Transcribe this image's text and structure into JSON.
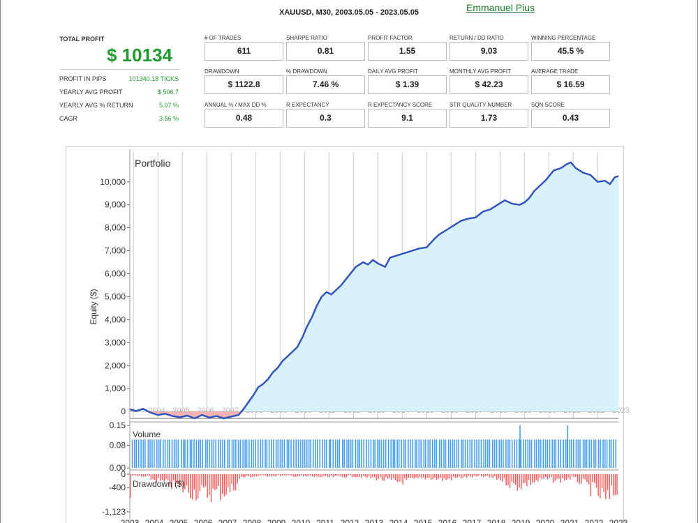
{
  "report": {
    "title": "XAUUSD, M30, 2003.05.05 - 2023.05.05",
    "author": "Emmanuel  Pius"
  },
  "summary": {
    "total_profit_label": "TOTAL PROFIT",
    "total_profit_value": "$ 10134",
    "rows": [
      {
        "label": "PROFIT IN PIPS",
        "value": "101340.18 TICKS"
      },
      {
        "label": "YEARLY AVG PROFIT",
        "value": "$ 506.7"
      },
      {
        "label": "YEARLY AVG % RETURN",
        "value": "5.07 %"
      },
      {
        "label": "CAGR",
        "value": "3.56 %"
      }
    ]
  },
  "metrics": [
    {
      "label": "# OF TRADES",
      "value": "611"
    },
    {
      "label": "SHARPE RATIO",
      "value": "0.81"
    },
    {
      "label": "PROFIT FACTOR",
      "value": "1.55"
    },
    {
      "label": "RETURN / DD RATIO",
      "value": "9.03"
    },
    {
      "label": "WINNING PERCENTAGE",
      "value": "45.5 %"
    },
    {
      "label": "DRAWDOWN",
      "value": "$ 1122.8"
    },
    {
      "label": "% DRAWDOWN",
      "value": "7.46 %"
    },
    {
      "label": "DAILY AVG PROFIT",
      "value": "$ 1.39"
    },
    {
      "label": "MONTHLY AVG PROFIT",
      "value": "$ 42.23"
    },
    {
      "label": "AVERAGE TRADE",
      "value": "$ 16.59"
    },
    {
      "label": "ANNUAL % / MAX DD %",
      "value": "0.48"
    },
    {
      "label": "R EXPECTANCY",
      "value": "0.3"
    },
    {
      "label": "R EXPECTANCY SCORE",
      "value": "9.1"
    },
    {
      "label": "STR QUALITY NUMBER",
      "value": "1.73"
    },
    {
      "label": "SQN SCORE",
      "value": "0.43"
    }
  ],
  "chart_data": {
    "type": "line",
    "title": "Portfolio",
    "ylabel": "Equity ($)",
    "ylim": [
      -300,
      11300
    ],
    "yticks": [
      "10,000",
      "9,000",
      "8,000",
      "7,000",
      "6,000",
      "5,000",
      "4,000",
      "3,000",
      "2,000",
      "1,000"
    ],
    "ytick_values": [
      10000,
      9000,
      8000,
      7000,
      6000,
      5000,
      4000,
      3000,
      2000,
      1000
    ],
    "zero_label": "0",
    "year_labels": [
      "2003",
      "2004",
      "2005",
      "2006",
      "2007",
      "2008",
      "2009",
      "2010",
      "2011",
      "2012",
      "2013",
      "2014",
      "2015",
      "2016",
      "2017",
      "2018",
      "2019",
      "2020",
      "2021",
      "2022",
      "2023"
    ],
    "x_range": [
      2003.35,
      2023.35
    ],
    "colors": {
      "line": "#3355bb",
      "fill": "#d8f2fc",
      "negative_fill": "#f4b4b4",
      "volume": "#4a9ef0",
      "drawdown": "#f06060",
      "grid": "#cccccc"
    },
    "series": [
      {
        "x": [
          2003.35,
          2003.6,
          2003.9,
          2004.2,
          2004.5,
          2004.8,
          2005.1,
          2005.4,
          2005.7,
          2006.0,
          2006.3,
          2006.6,
          2006.9,
          2007.2,
          2007.5,
          2007.8,
          2008.0,
          2008.2,
          2008.4,
          2008.6,
          2008.8,
          2009.0,
          2009.2,
          2009.4,
          2009.6,
          2009.8,
          2010.0,
          2010.2,
          2010.4,
          2010.6,
          2010.8,
          2011.0,
          2011.2,
          2011.4,
          2011.6,
          2011.8,
          2012.0,
          2012.3,
          2012.6,
          2012.9,
          2013.1,
          2013.3,
          2013.5,
          2013.8,
          2014.0,
          2014.3,
          2014.6,
          2014.9,
          2015.2,
          2015.5,
          2015.8,
          2016.0,
          2016.3,
          2016.6,
          2016.9,
          2017.2,
          2017.5,
          2017.8,
          2018.1,
          2018.4,
          2018.7,
          2019.0,
          2019.3,
          2019.5,
          2019.7,
          2019.9,
          2020.1,
          2020.4,
          2020.7,
          2021.0,
          2021.2,
          2021.4,
          2021.6,
          2021.9,
          2022.2,
          2022.5,
          2022.8,
          2023.0,
          2023.2,
          2023.35
        ],
        "y": [
          100,
          20,
          120,
          -50,
          -150,
          -100,
          -200,
          -250,
          -180,
          -300,
          -150,
          -260,
          -200,
          -300,
          -220,
          -150,
          100,
          400,
          700,
          1050,
          1200,
          1400,
          1700,
          1900,
          2200,
          2400,
          2600,
          2800,
          3200,
          3700,
          4100,
          4600,
          5000,
          5200,
          5100,
          5300,
          5500,
          5900,
          6300,
          6500,
          6400,
          6600,
          6450,
          6300,
          6700,
          6800,
          6900,
          7000,
          7100,
          7150,
          7500,
          7700,
          7900,
          8100,
          8300,
          8400,
          8450,
          8700,
          8800,
          9000,
          9200,
          9050,
          9000,
          9100,
          9300,
          9600,
          9800,
          10100,
          10500,
          10600,
          10750,
          10850,
          10600,
          10400,
          10300,
          10000,
          10050,
          9900,
          10200,
          10250
        ]
      }
    ],
    "volume": {
      "label": "Volume",
      "yticks": [
        "0.15",
        "0.08",
        "0.00"
      ],
      "ytick_values": [
        0.15,
        0.08,
        0.0
      ],
      "typical_value": 0.1,
      "spikes": [
        {
          "x": 2019.3,
          "value": 0.15
        },
        {
          "x": 2021.25,
          "value": 0.15
        }
      ]
    },
    "drawdown": {
      "label": "Drawdown ($)",
      "yticks": [
        "0",
        "-400",
        "-1,123"
      ],
      "ytick_values": [
        0,
        -400,
        -1123
      ],
      "min": -1123,
      "x": [
        2003.4,
        2004.0,
        2004.6,
        2005.2,
        2005.8,
        2006.4,
        2007.0,
        2007.5,
        2007.9,
        2008.5,
        2009.5,
        2010.5,
        2011.5,
        2012.5,
        2013.5,
        2014.2,
        2014.8,
        2015.5,
        2016.2,
        2017.0,
        2017.8,
        2018.5,
        2019.1,
        2019.7,
        2020.3,
        2020.9,
        2021.4,
        2021.8,
        2022.2,
        2022.6,
        2022.9,
        2023.2
      ],
      "y": [
        -60,
        -120,
        -300,
        -500,
        -700,
        -800,
        -750,
        -650,
        -120,
        -80,
        -60,
        -90,
        -120,
        -80,
        -180,
        -320,
        -250,
        -150,
        -220,
        -120,
        -90,
        -200,
        -500,
        -350,
        -200,
        -260,
        -150,
        -320,
        -600,
        -900,
        -1123,
        -700
      ]
    }
  }
}
